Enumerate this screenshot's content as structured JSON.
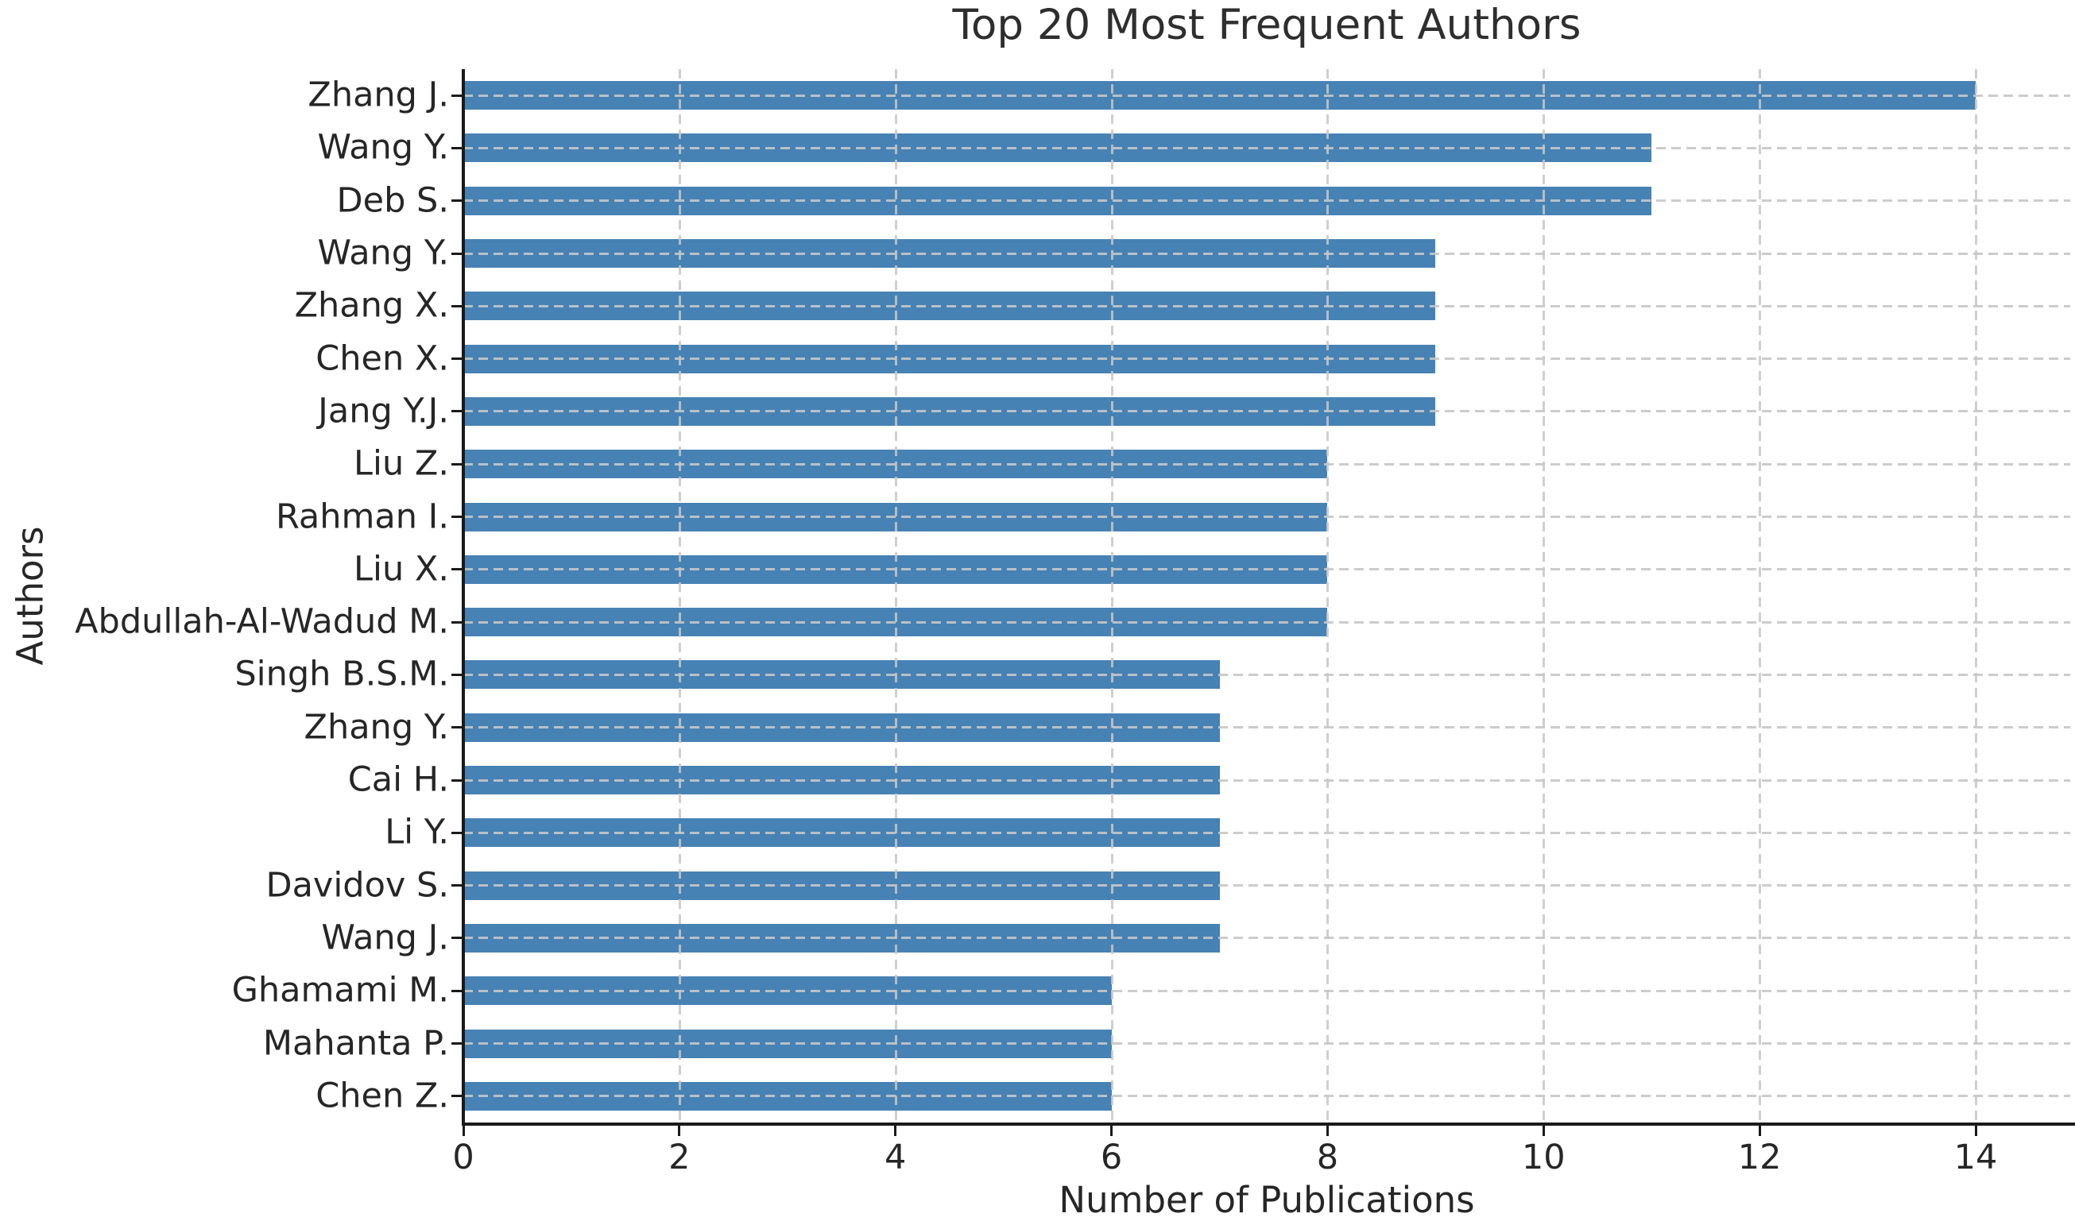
{
  "chart_data": {
    "type": "bar",
    "orientation": "horizontal",
    "title": "Top 20 Most Frequent Authors",
    "xlabel": "Number of Publications",
    "ylabel": "Authors",
    "categories": [
      "Zhang J.",
      "Wang Y.",
      "Deb S.",
      "Wang Y.",
      "Zhang X.",
      "Chen X.",
      "Jang Y.J.",
      "Liu Z.",
      "Rahman I.",
      "Liu X.",
      "Abdullah-Al-Wadud M.",
      "Singh B.S.M.",
      "Zhang Y.",
      "Cai H.",
      "Li Y.",
      "Davidov S.",
      "Wang J.",
      "Ghamami M.",
      "Mahanta P.",
      "Chen Z."
    ],
    "values": [
      14,
      11,
      11,
      9,
      9,
      9,
      9,
      8,
      8,
      8,
      8,
      7,
      7,
      7,
      7,
      7,
      7,
      6,
      6,
      6
    ],
    "xticks": [
      0,
      2,
      4,
      6,
      8,
      10,
      12,
      14
    ],
    "xlim": [
      0,
      14.88
    ],
    "grid": true,
    "grid_style": "dashed",
    "legend": "none",
    "bar_color": "#4682b4",
    "grid_color": "#c7c7c7",
    "axis_color": "#1a1a1a",
    "text_color": "#262626"
  }
}
